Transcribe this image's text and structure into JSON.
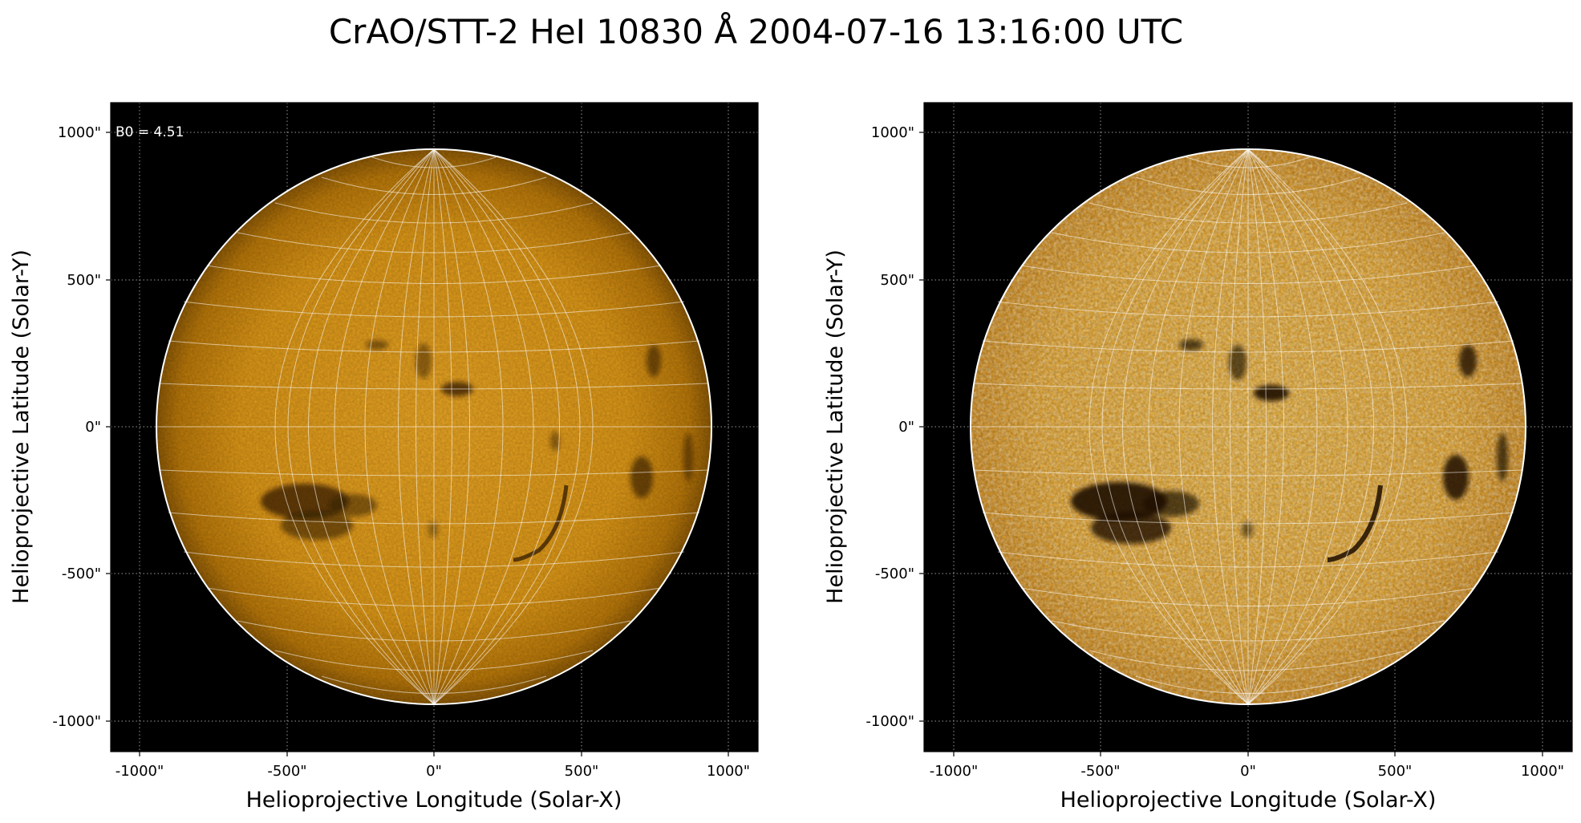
{
  "figure": {
    "title": "CrAO/STT-2 HeI 10830 Å 2004-07-16 13:16:00 UTC"
  },
  "panels": [
    {
      "id": "left",
      "annotation": "B0 = 4.51",
      "xlabel": "Helioprojective Longitude (Solar-X)",
      "ylabel": "Helioprojective Latitude (Solar-Y)",
      "xticks": [
        "-1000\"",
        "-500\"",
        "0\"",
        "500\"",
        "1000\""
      ],
      "yticks": [
        "1000\"",
        "500\"",
        "0\"",
        "-500\"",
        "-1000\""
      ],
      "contrast": "normal"
    },
    {
      "id": "right",
      "annotation": "",
      "xlabel": "Helioprojective Longitude (Solar-X)",
      "ylabel": "Helioprojective Latitude (Solar-Y)",
      "xticks": [
        "-1000\"",
        "-500\"",
        "0\"",
        "500\"",
        "1000\""
      ],
      "yticks": [
        "1000\"",
        "500\"",
        "0\"",
        "-500\"",
        "-1000\""
      ],
      "contrast": "enhanced"
    }
  ],
  "style": {
    "background": "#000000",
    "disk_color": "#e8a020",
    "disk_color_enhanced": "#f0b640",
    "grid_color": "#ffffff",
    "limb_color": "#ffffff",
    "colormap": "orange-solar"
  }
}
